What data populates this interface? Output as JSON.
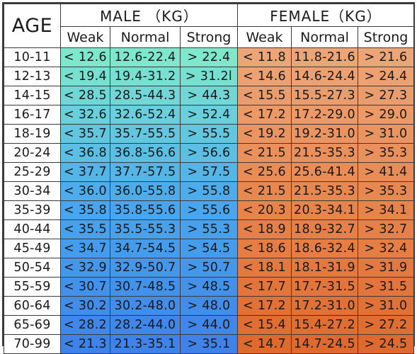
{
  "header": {
    "age_label": "AGE",
    "male_label": "MALE （KG）",
    "female_label": "FEMALE（KG）",
    "male_columns": [
      "Weak",
      "Normal",
      "Strong"
    ],
    "female_columns": [
      "Weak",
      "Normal",
      "Strong"
    ]
  },
  "rows": [
    {
      "age": "10-11",
      "m_weak": "< 12.6",
      "m_normal": "12.6-22.4",
      "m_strong": "> 22.4",
      "f_weak": "< 11.8",
      "f_normal": "11.8-21.6",
      "f_strong": "> 21.6"
    },
    {
      "age": "12-13",
      "m_weak": "< 19.4",
      "m_normal": "19.4-31.2",
      "m_strong": "> 31.2l",
      "f_weak": "< 14.6",
      "f_normal": "14.6-24.4",
      "f_strong": "> 24.4"
    },
    {
      "age": "14-15",
      "m_weak": "< 28.5",
      "m_normal": "28.5-44.3",
      "m_strong": "> 44.3",
      "f_weak": "< 15.5",
      "f_normal": "15.5-27.3",
      "f_strong": "> 27.3"
    },
    {
      "age": "16-17",
      "m_weak": "< 32.6",
      "m_normal": "32.6-52.4",
      "m_strong": "> 52.4",
      "f_weak": "< 17.2",
      "f_normal": "17.2-29.0",
      "f_strong": "> 29.0"
    },
    {
      "age": "18-19",
      "m_weak": "< 35.7",
      "m_normal": "35.7-55.5",
      "m_strong": "> 55.5",
      "f_weak": "< 19.2",
      "f_normal": "19.2-31.0",
      "f_strong": "> 31.0"
    },
    {
      "age": "20-24",
      "m_weak": "< 36.8",
      "m_normal": "36.8-56.6",
      "m_strong": "> 56.6",
      "f_weak": "< 21.5",
      "f_normal": "21.5-35.3",
      "f_strong": "> 35.3"
    },
    {
      "age": "25-29",
      "m_weak": "< 37.7",
      "m_normal": "37.7-57.5",
      "m_strong": "> 57.5",
      "f_weak": "< 25.6",
      "f_normal": "25.6-41.4",
      "f_strong": "> 41.4"
    },
    {
      "age": "30-34",
      "m_weak": "< 36.0",
      "m_normal": "36.0-55.8",
      "m_strong": "> 55.8",
      "f_weak": "< 21.5",
      "f_normal": "21.5-35.3",
      "f_strong": "> 35.3"
    },
    {
      "age": "35-39",
      "m_weak": "< 35.8",
      "m_normal": "35.8-55.6",
      "m_strong": "> 55.6",
      "f_weak": "< 20.3",
      "f_normal": "20.3-34.1",
      "f_strong": "> 34.1"
    },
    {
      "age": "40-44",
      "m_weak": "< 35.5",
      "m_normal": "35.5-55.3",
      "m_strong": "> 55.3",
      "f_weak": "< 18.9",
      "f_normal": "18.9-32.7",
      "f_strong": "> 32.7"
    },
    {
      "age": "45-49",
      "m_weak": "< 34.7",
      "m_normal": "34.7-54.5",
      "m_strong": "> 54.5",
      "f_weak": "< 18.6",
      "f_normal": "18.6-32.4",
      "f_strong": "> 32.4"
    },
    {
      "age": "50-54",
      "m_weak": "< 32.9",
      "m_normal": "32.9-50.7",
      "m_strong": "> 50.7",
      "f_weak": "< 18.1",
      "f_normal": "18.1-31.9",
      "f_strong": "> 31.9"
    },
    {
      "age": "55-59",
      "m_weak": "< 30.7",
      "m_normal": "30.7-48.5",
      "m_strong": "> 48.5",
      "f_weak": "< 17.7",
      "f_normal": "17.7-31.5",
      "f_strong": "> 31.5"
    },
    {
      "age": "60-64",
      "m_weak": "< 30.2",
      "m_normal": "30.2-48.0",
      "m_strong": "> 48.0",
      "f_weak": "< 17.2",
      "f_normal": "17.2-31.0",
      "f_strong": "> 31.0"
    },
    {
      "age": "65-69",
      "m_weak": "< 28.2",
      "m_normal": "28.2-44.0",
      "m_strong": "> 44.0",
      "f_weak": "< 15.4",
      "f_normal": "15.4-27.2",
      "f_strong": "> 27.2"
    },
    {
      "age": "70-99",
      "m_weak": "< 21.3",
      "m_normal": "21.3-35.1",
      "m_strong": "> 35.1",
      "f_weak": "< 14.7",
      "f_normal": "14.7-24.5",
      "f_strong": "> 24.5"
    }
  ],
  "colors": {
    "male_gradient": [
      "#7ee8cd",
      "#4aa9ee",
      "#3f82e8"
    ],
    "female_gradient": [
      "#eba577",
      "#e8864e",
      "#de6a2f"
    ],
    "grid_line": "#3a3a3a"
  }
}
